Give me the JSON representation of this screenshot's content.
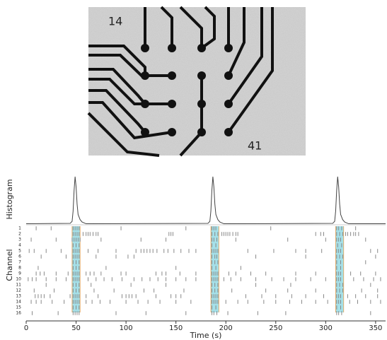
{
  "image": {
    "labels": [
      "14",
      "41"
    ]
  },
  "chart_data": {
    "type": "raster",
    "xlabel": "Time (s)",
    "ylabel": "Channel",
    "histogram_label": "Histogram",
    "xlim": [
      0,
      360
    ],
    "xticks": [
      0,
      50,
      100,
      150,
      200,
      250,
      300,
      350
    ],
    "histogram": {
      "color": "#444444",
      "ylim": [
        0,
        15
      ],
      "x": [
        0,
        44,
        46,
        47,
        48,
        49,
        50,
        51,
        52,
        54,
        56,
        60,
        182,
        184,
        185,
        186,
        187,
        188,
        189,
        190,
        192,
        194,
        198,
        307,
        309,
        310,
        311,
        312,
        313,
        314,
        315,
        317,
        319,
        323,
        360
      ],
      "values": [
        0.3,
        0.4,
        1,
        4,
        10,
        14,
        11,
        6,
        3,
        1.5,
        0.8,
        0.3,
        0.4,
        1,
        4,
        10,
        14,
        11,
        6,
        3,
        1.5,
        0.8,
        0.3,
        0.4,
        1,
        4,
        10,
        14,
        11,
        6,
        3,
        1.5,
        0.8,
        0.3,
        0.3
      ]
    },
    "bursts": {
      "color": "#7fd3de",
      "edge_color": "#e8a050",
      "x": [
        [
          46,
          54
        ],
        [
          185,
          193
        ],
        [
          310,
          318
        ]
      ]
    },
    "spike_color": "#888888",
    "series": [
      {
        "name": "1",
        "values": [
          10,
          25,
          47,
          49,
          51,
          53,
          95,
          160,
          186,
          188,
          190,
          245,
          311,
          313,
          316,
          330
        ]
      },
      {
        "name": "2",
        "values": [
          47,
          49,
          51,
          53,
          57,
          60,
          62,
          64,
          67,
          70,
          72,
          143,
          145,
          147,
          186,
          189,
          192,
          196,
          198,
          200,
          202,
          204,
          207,
          210,
          212,
          290,
          295,
          298,
          311,
          314,
          317,
          320,
          322,
          325,
          328,
          330,
          333
        ]
      },
      {
        "name": "3",
        "values": [
          5,
          30,
          46,
          48,
          50,
          52,
          54,
          75,
          115,
          140,
          186,
          188,
          191,
          210,
          262,
          300,
          311,
          313,
          315,
          340
        ]
      },
      {
        "name": "4",
        "values": [
          47,
          50,
          53,
          186,
          190,
          312,
          316
        ]
      },
      {
        "name": "5",
        "values": [
          3,
          8,
          20,
          35,
          47,
          49,
          51,
          53,
          62,
          72,
          90,
          110,
          115,
          118,
          121,
          124,
          127,
          131,
          138,
          142,
          148,
          155,
          163,
          170,
          186,
          188,
          190,
          192,
          222,
          248,
          270,
          280,
          296,
          311,
          313,
          315,
          345,
          352
        ]
      },
      {
        "name": "6",
        "values": [
          15,
          40,
          47,
          49,
          51,
          53,
          70,
          90,
          102,
          108,
          186,
          189,
          191,
          230,
          280,
          311,
          314,
          317,
          350
        ]
      },
      {
        "name": "7",
        "values": [
          47,
          50,
          53,
          186,
          189,
          192,
          311,
          315,
          340
        ]
      },
      {
        "name": "8",
        "values": [
          12,
          47,
          50,
          53,
          80,
          150,
          186,
          190,
          215,
          311,
          315
        ]
      },
      {
        "name": "9",
        "values": [
          10,
          14,
          18,
          30,
          42,
          47,
          49,
          51,
          53,
          60,
          64,
          68,
          75,
          95,
          100,
          130,
          136,
          140,
          154,
          170,
          186,
          188,
          190,
          192,
          203,
          210,
          225,
          240,
          270,
          290,
          311,
          313,
          315,
          325,
          335,
          350
        ]
      },
      {
        "name": "10",
        "values": [
          2,
          6,
          10,
          20,
          30,
          40,
          47,
          49,
          51,
          53,
          62,
          70,
          78,
          86,
          96,
          108,
          116,
          124,
          132,
          140,
          150,
          160,
          170,
          186,
          188,
          190,
          192,
          198,
          205,
          215,
          230,
          246,
          258,
          270,
          285,
          300,
          311,
          313,
          315,
          328,
          338,
          348,
          355
        ]
      },
      {
        "name": "11",
        "values": [
          20,
          47,
          50,
          53,
          65,
          105,
          140,
          186,
          189,
          192,
          230,
          265,
          311,
          314,
          317,
          345
        ]
      },
      {
        "name": "12",
        "values": [
          8,
          28,
          47,
          50,
          53,
          68,
          88,
          118,
          128,
          158,
          186,
          189,
          192,
          206,
          240,
          262,
          290,
          311,
          314,
          317,
          336,
          352
        ]
      },
      {
        "name": "13",
        "values": [
          9,
          12,
          15,
          18,
          24,
          44,
          47,
          49,
          51,
          53,
          60,
          72,
          96,
          100,
          103,
          106,
          110,
          130,
          145,
          150,
          155,
          186,
          188,
          190,
          192,
          220,
          236,
          250,
          266,
          280,
          298,
          311,
          313,
          315,
          322,
          330,
          340,
          352
        ]
      },
      {
        "name": "14",
        "values": [
          5,
          10,
          15,
          26,
          38,
          47,
          49,
          51,
          53,
          60,
          66,
          74,
          84,
          100,
          112,
          122,
          134,
          150,
          165,
          186,
          188,
          190,
          192,
          200,
          212,
          222,
          238,
          250,
          264,
          276,
          290,
          302,
          311,
          313,
          315,
          324,
          332,
          345,
          355
        ]
      },
      {
        "name": "15",
        "values": [
          47,
          50,
          53,
          186,
          190,
          311,
          315
        ]
      },
      {
        "name": "16",
        "values": [
          6,
          32,
          47,
          49,
          51,
          53,
          90,
          120,
          160,
          186,
          188,
          191,
          202,
          232,
          260,
          311,
          313,
          316,
          345
        ]
      }
    ]
  }
}
